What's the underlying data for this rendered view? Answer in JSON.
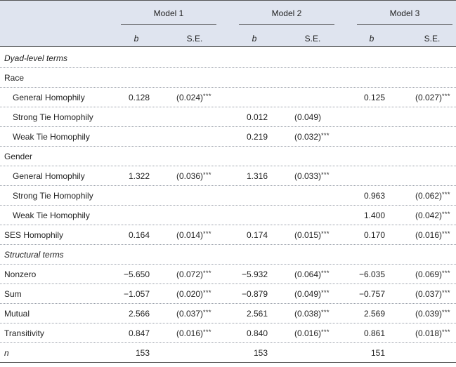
{
  "header": {
    "models": [
      "Model 1",
      "Model 2",
      "Model 3"
    ],
    "sub": [
      "b",
      "S.E.",
      "b",
      "S.E.",
      "b",
      "S.E."
    ]
  },
  "rows": [
    {
      "label": "Dyad-level terms",
      "style": "italic",
      "indent": false,
      "cells": []
    },
    {
      "label": "Race",
      "style": "normal",
      "indent": false,
      "cells": []
    },
    {
      "label": "General Homophily",
      "indent": true,
      "cells": [
        {
          "col": 0,
          "b": "0.128",
          "se": "(0.024)",
          "stars": "***"
        },
        {
          "col": 2,
          "b": "0.125",
          "se": "(0.027)",
          "stars": "***"
        }
      ]
    },
    {
      "label": "Strong Tie Homophily",
      "indent": true,
      "cells": [
        {
          "col": 1,
          "b": "0.012",
          "se": "(0.049)",
          "stars": ""
        }
      ]
    },
    {
      "label": "Weak Tie Homophily",
      "indent": true,
      "cells": [
        {
          "col": 1,
          "b": "0.219",
          "se": "(0.032)",
          "stars": "***"
        }
      ]
    },
    {
      "label": "Gender",
      "style": "normal",
      "indent": false,
      "cells": []
    },
    {
      "label": "General Homophily",
      "indent": true,
      "cells": [
        {
          "col": 0,
          "b": "1.322",
          "se": "(0.036)",
          "stars": "***"
        },
        {
          "col": 1,
          "b": "1.316",
          "se": "(0.033)",
          "stars": "***"
        }
      ]
    },
    {
      "label": "Strong Tie Homophily",
      "indent": true,
      "cells": [
        {
          "col": 2,
          "b": "0.963",
          "se": "(0.062)",
          "stars": "***"
        }
      ]
    },
    {
      "label": "Weak Tie Homophily",
      "indent": true,
      "cells": [
        {
          "col": 2,
          "b": "1.400",
          "se": "(0.042)",
          "stars": "***"
        }
      ]
    },
    {
      "label": "SES Homophily",
      "indent": false,
      "cells": [
        {
          "col": 0,
          "b": "0.164",
          "se": "(0.014)",
          "stars": "***"
        },
        {
          "col": 1,
          "b": "0.174",
          "se": "(0.015)",
          "stars": "***"
        },
        {
          "col": 2,
          "b": "0.170",
          "se": "(0.016)",
          "stars": "***"
        }
      ]
    },
    {
      "label": "Structural terms",
      "style": "italic",
      "indent": false,
      "cells": []
    },
    {
      "label": "Nonzero",
      "indent": false,
      "cells": [
        {
          "col": 0,
          "b": "−5.650",
          "se": "(0.072)",
          "stars": "***"
        },
        {
          "col": 1,
          "b": "−5.932",
          "se": "(0.064)",
          "stars": "***"
        },
        {
          "col": 2,
          "b": "−6.035",
          "se": "(0.069)",
          "stars": "***"
        }
      ]
    },
    {
      "label": "Sum",
      "indent": false,
      "cells": [
        {
          "col": 0,
          "b": "−1.057",
          "se": "(0.020)",
          "stars": "***"
        },
        {
          "col": 1,
          "b": "−0.879",
          "se": "(0.049)",
          "stars": "***"
        },
        {
          "col": 2,
          "b": "−0.757",
          "se": "(0.037)",
          "stars": "***"
        }
      ]
    },
    {
      "label": "Mutual",
      "indent": false,
      "cells": [
        {
          "col": 0,
          "b": "2.566",
          "se": "(0.037)",
          "stars": "***"
        },
        {
          "col": 1,
          "b": "2.561",
          "se": "(0.038)",
          "stars": "***"
        },
        {
          "col": 2,
          "b": "2.569",
          "se": "(0.039)",
          "stars": "***"
        }
      ]
    },
    {
      "label": "Transitivity",
      "indent": false,
      "cells": [
        {
          "col": 0,
          "b": "0.847",
          "se": "(0.016)",
          "stars": "***"
        },
        {
          "col": 1,
          "b": "0.840",
          "se": "(0.016)",
          "stars": "***"
        },
        {
          "col": 2,
          "b": "0.861",
          "se": "(0.018)",
          "stars": "***"
        }
      ]
    },
    {
      "label": "n",
      "style": "italic",
      "indent": false,
      "cells": [
        {
          "col": 0,
          "b": "153",
          "se": "",
          "stars": ""
        },
        {
          "col": 1,
          "b": "153",
          "se": "",
          "stars": ""
        },
        {
          "col": 2,
          "b": "151",
          "se": "",
          "stars": ""
        }
      ]
    }
  ]
}
